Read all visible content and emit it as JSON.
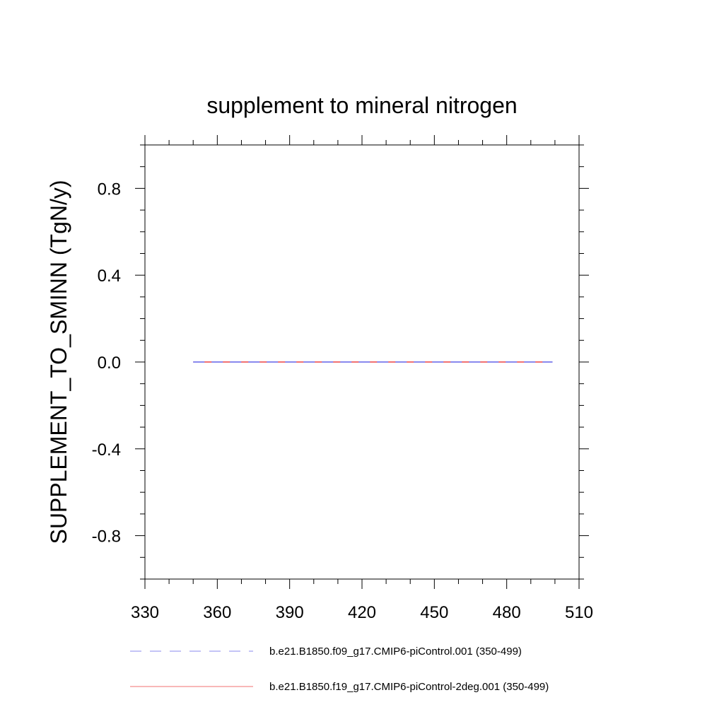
{
  "chart_data": {
    "type": "line",
    "title": "supplement to mineral nitrogen",
    "xlabel": "",
    "ylabel": "SUPPLEMENT_TO_SMINN  (TgN/y)",
    "xlim": [
      330,
      510
    ],
    "ylim": [
      -1.0,
      1.0
    ],
    "x_ticks": [
      330,
      360,
      390,
      420,
      450,
      480,
      510
    ],
    "x_tick_labels": [
      "330",
      "360",
      "390",
      "420",
      "450",
      "480",
      "510"
    ],
    "y_ticks": [
      -0.8,
      -0.4,
      0.0,
      0.4,
      0.8
    ],
    "y_tick_labels": [
      "-0.8",
      "-0.4",
      "0.0",
      "0.4",
      "0.8"
    ],
    "grid": false,
    "legend_position": "bottom",
    "series": [
      {
        "name": "b.e21.B1850.f09_g17.CMIP6-piControl.001 (350-499)",
        "color": "#8888ee",
        "style": "dashed",
        "x": [
          350,
          499
        ],
        "values": [
          0.0,
          0.0
        ]
      },
      {
        "name": "b.e21.B1850.f19_g17.CMIP6-piControl-2deg.001 (350-499)",
        "color": "#f07070",
        "style": "solid",
        "x": [
          350,
          499
        ],
        "values": [
          0.0,
          0.0
        ]
      }
    ]
  }
}
